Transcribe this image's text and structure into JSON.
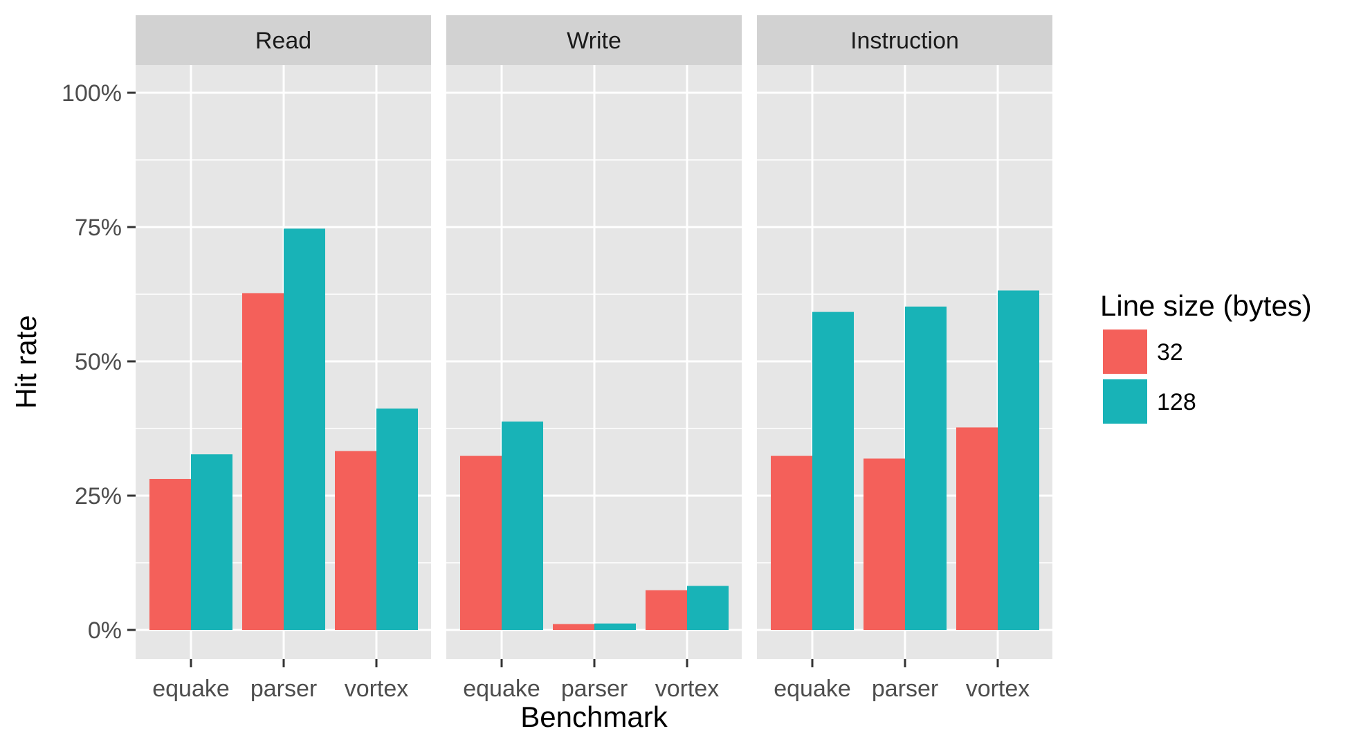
{
  "chart_data": {
    "type": "bar",
    "layout": "faceted-grouped-bar",
    "xlabel": "Benchmark",
    "ylabel": "Hit rate",
    "ylim": [
      0,
      1.05
    ],
    "y_ticks": [
      0,
      0.25,
      0.5,
      0.75,
      1.0
    ],
    "y_tick_labels": [
      "0%",
      "25%",
      "50%",
      "75%",
      "100%"
    ],
    "categories": [
      "equake",
      "parser",
      "vortex"
    ],
    "grid": true,
    "legend": {
      "title": "Line size (bytes)",
      "placement": "right",
      "entries": [
        "32",
        "128"
      ]
    },
    "series_colors": {
      "32": "#f4605a",
      "128": "#18b3b7"
    },
    "facets": [
      {
        "name": "Read",
        "series": [
          {
            "name": "32",
            "values": [
              0.281,
              0.627,
              0.333
            ]
          },
          {
            "name": "128",
            "values": [
              0.327,
              0.747,
              0.412
            ]
          }
        ]
      },
      {
        "name": "Write",
        "series": [
          {
            "name": "32",
            "values": [
              0.324,
              0.011,
              0.074
            ]
          },
          {
            "name": "128",
            "values": [
              0.388,
              0.012,
              0.082
            ]
          }
        ]
      },
      {
        "name": "Instruction",
        "series": [
          {
            "name": "32",
            "values": [
              0.324,
              0.319,
              0.377
            ]
          },
          {
            "name": "128",
            "values": [
              0.592,
              0.602,
              0.632
            ]
          }
        ]
      }
    ]
  }
}
